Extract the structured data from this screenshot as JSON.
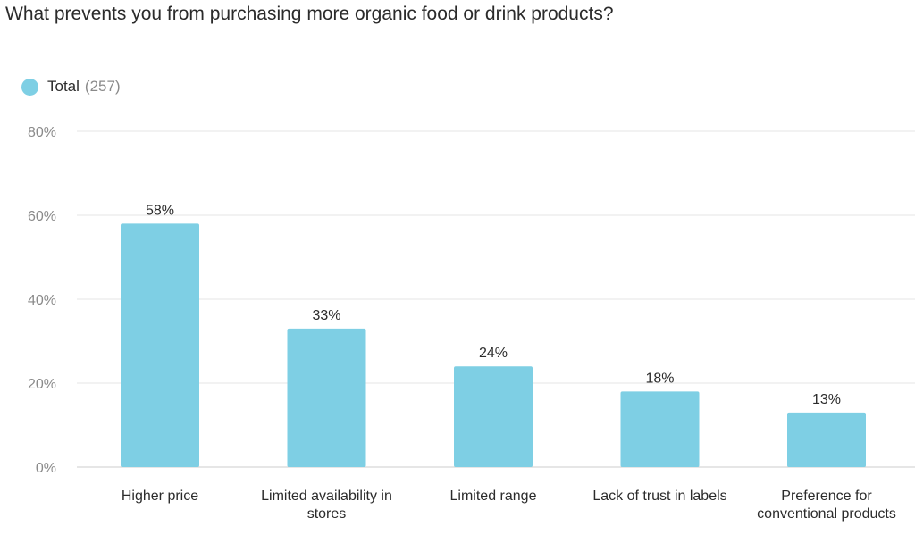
{
  "chart_data": {
    "type": "bar",
    "title": "What prevents you from purchasing more organic food or drink products?",
    "legend": {
      "position": "top-left",
      "entries": [
        {
          "label": "Total",
          "count": "(257)",
          "color": "#7ecfe4"
        }
      ]
    },
    "categories": [
      [
        "Higher price"
      ],
      [
        "Limited availability in",
        "stores"
      ],
      [
        "Limited range"
      ],
      [
        "Lack of trust in labels"
      ],
      [
        "Preference for",
        "conventional products"
      ]
    ],
    "series": [
      {
        "name": "Total",
        "values": [
          58,
          33,
          24,
          18,
          13
        ],
        "data_labels": [
          "58%",
          "33%",
          "24%",
          "18%",
          "13%"
        ]
      }
    ],
    "y_ticks": [
      {
        "value": 0,
        "label": "0%"
      },
      {
        "value": 20,
        "label": "20%"
      },
      {
        "value": 40,
        "label": "40%"
      },
      {
        "value": 60,
        "label": "60%"
      },
      {
        "value": 80,
        "label": "80%"
      }
    ],
    "ylim": [
      0,
      80
    ],
    "grid": true,
    "colors": {
      "bar": "#7ecfe4",
      "grid": "#e6e6e6",
      "axis_line": "#cccccc",
      "tick_label": "#8a8a8a",
      "category_label": "#2b2b2b",
      "data_label": "#2b2b2b"
    }
  }
}
